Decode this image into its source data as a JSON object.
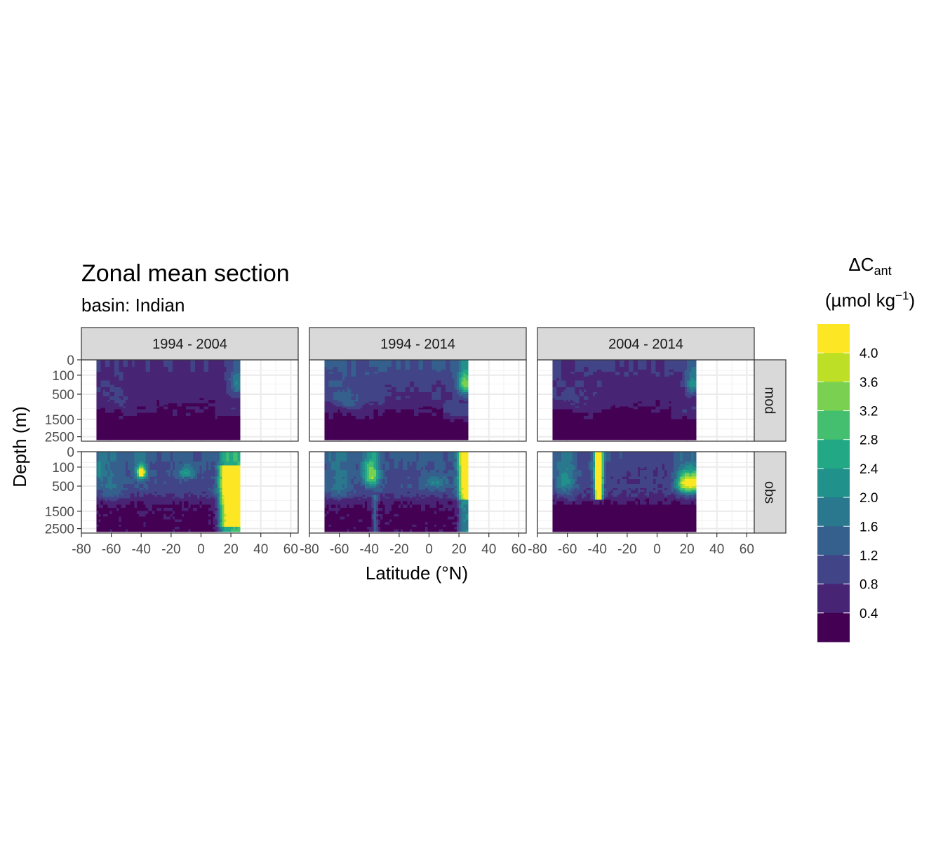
{
  "chart_data": {
    "type": "heatmap",
    "title": "Zonal mean section",
    "subtitle": "basin: Indian",
    "xlabel": "Latitude (°N)",
    "ylabel": "Depth (m)",
    "xlim": [
      -80,
      65
    ],
    "x_ticks": [
      -80,
      -60,
      -40,
      -20,
      0,
      20,
      40,
      60
    ],
    "x_tick_labels": [
      "-80",
      "-60",
      "-40",
      "-20",
      "0",
      "20",
      "40",
      "60"
    ],
    "y_ticks": [
      0,
      100,
      500,
      1500,
      2500
    ],
    "y_tick_labels": [
      "0",
      "100",
      "500",
      "1500",
      "2500"
    ],
    "y_scale": "sqrt, reversed",
    "data_lat_range": [
      -70,
      25
    ],
    "columns": [
      "1994 - 2004",
      "1994 - 2014",
      "2004 - 2014"
    ],
    "rows": [
      "mod",
      "obs"
    ],
    "legend": {
      "title_main": "ΔC",
      "title_sub": "ant",
      "title_unit_prefix": "(µmol kg",
      "title_unit_sup": "−1",
      "title_unit_suffix": ")",
      "labels": [
        "4.0",
        "3.6",
        "3.2",
        "2.8",
        "2.4",
        "2.0",
        "1.6",
        "1.2",
        "0.8",
        "0.4"
      ],
      "label_values": [
        4.0,
        3.6,
        3.2,
        2.8,
        2.4,
        2.0,
        1.6,
        1.2,
        0.8,
        0.4
      ],
      "bins_top_to_bottom": [
        4.4,
        4.0,
        3.6,
        3.2,
        2.8,
        2.4,
        2.0,
        1.6,
        1.2,
        0.8,
        0.4
      ],
      "colors_top_to_bottom": [
        "#fde725",
        "#bddf26",
        "#7ad151",
        "#44bf70",
        "#22a884",
        "#21918c",
        "#2a788e",
        "#355f8d",
        "#414487",
        "#482475",
        "#440154"
      ],
      "placement": "right"
    },
    "grid": true
  }
}
